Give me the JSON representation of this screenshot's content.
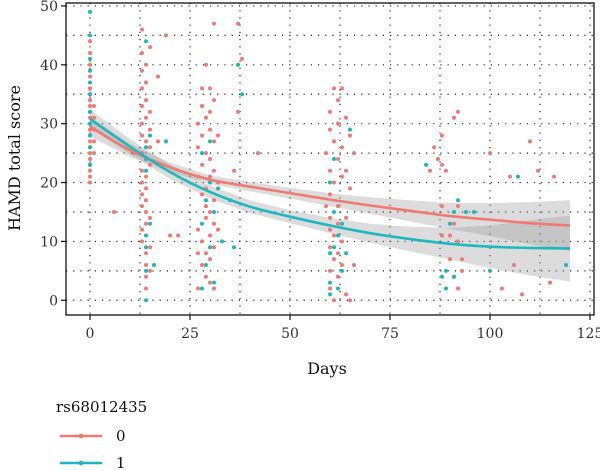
{
  "chart_data": {
    "type": "scatter",
    "title": "",
    "xlabel": "Days",
    "ylabel": "HAMD total score",
    "xlim": [
      -6,
      126
    ],
    "ylim": [
      -2.5,
      50.5
    ],
    "xticks": [
      0,
      25,
      50,
      75,
      100,
      125
    ],
    "yticks": [
      0,
      10,
      20,
      30,
      40,
      50
    ],
    "grid": "dotted",
    "legend": {
      "title": "rs68012435",
      "placement": "bottom-left",
      "entries": [
        {
          "label": "0",
          "color": "#F07A72"
        },
        {
          "label": "1",
          "color": "#1CB8BE"
        }
      ]
    },
    "series": [
      {
        "name": "0",
        "color": "#F07A72",
        "points": [
          [
            0,
            20
          ],
          [
            0,
            21
          ],
          [
            0,
            22
          ],
          [
            0,
            23
          ],
          [
            0,
            24
          ],
          [
            0,
            25
          ],
          [
            0,
            26
          ],
          [
            0,
            27
          ],
          [
            0,
            28
          ],
          [
            0,
            29
          ],
          [
            0,
            30
          ],
          [
            0,
            31
          ],
          [
            0,
            32
          ],
          [
            0,
            33
          ],
          [
            0,
            34
          ],
          [
            0,
            35
          ],
          [
            0,
            36
          ],
          [
            0,
            38
          ],
          [
            0,
            40
          ],
          [
            0,
            42
          ],
          [
            0,
            44
          ],
          [
            1,
            25
          ],
          [
            1,
            27
          ],
          [
            1,
            29
          ],
          [
            1,
            31
          ],
          [
            1,
            33
          ],
          [
            6,
            15
          ],
          [
            11,
            25
          ],
          [
            13,
            10
          ],
          [
            13,
            12
          ],
          [
            13,
            16
          ],
          [
            13,
            18
          ],
          [
            13,
            20
          ],
          [
            13,
            22
          ],
          [
            13,
            25
          ],
          [
            13,
            28
          ],
          [
            13,
            30
          ],
          [
            13,
            33
          ],
          [
            13,
            36
          ],
          [
            13,
            39
          ],
          [
            13,
            42
          ],
          [
            13,
            46
          ],
          [
            14,
            2
          ],
          [
            14,
            4
          ],
          [
            14,
            6
          ],
          [
            14,
            8
          ],
          [
            14,
            13
          ],
          [
            14,
            15
          ],
          [
            14,
            17
          ],
          [
            14,
            19
          ],
          [
            14,
            21
          ],
          [
            14,
            24
          ],
          [
            14,
            27
          ],
          [
            14,
            31
          ],
          [
            14,
            34
          ],
          [
            14,
            37
          ],
          [
            14,
            40
          ],
          [
            15,
            5
          ],
          [
            15,
            9
          ],
          [
            15,
            14
          ],
          [
            15,
            23
          ],
          [
            15,
            26
          ],
          [
            15,
            29
          ],
          [
            15,
            32
          ],
          [
            15,
            43
          ],
          [
            17,
            27
          ],
          [
            17,
            38
          ],
          [
            19,
            45
          ],
          [
            20,
            11
          ],
          [
            22,
            11
          ],
          [
            27,
            2
          ],
          [
            27,
            8
          ],
          [
            27,
            12
          ],
          [
            27,
            21
          ],
          [
            27,
            26
          ],
          [
            27,
            30
          ],
          [
            28,
            6
          ],
          [
            28,
            10
          ],
          [
            28,
            18
          ],
          [
            28,
            23
          ],
          [
            28,
            28
          ],
          [
            28,
            33
          ],
          [
            28,
            36
          ],
          [
            29,
            4
          ],
          [
            29,
            8
          ],
          [
            29,
            14
          ],
          [
            29,
            16
          ],
          [
            29,
            19
          ],
          [
            29,
            25
          ],
          [
            29,
            31
          ],
          [
            29,
            40
          ],
          [
            30,
            3
          ],
          [
            30,
            7
          ],
          [
            30,
            11
          ],
          [
            30,
            15
          ],
          [
            30,
            21
          ],
          [
            30,
            24
          ],
          [
            30,
            29
          ],
          [
            30,
            32
          ],
          [
            30,
            36
          ],
          [
            31,
            2
          ],
          [
            31,
            9
          ],
          [
            31,
            13
          ],
          [
            31,
            17
          ],
          [
            31,
            22
          ],
          [
            31,
            27
          ],
          [
            31,
            34
          ],
          [
            31,
            47
          ],
          [
            32,
            12
          ],
          [
            32,
            20
          ],
          [
            32,
            28
          ],
          [
            36,
            22
          ],
          [
            37,
            32
          ],
          [
            37,
            47
          ],
          [
            38,
            41
          ],
          [
            42,
            25
          ],
          [
            59,
            16
          ],
          [
            59,
            25
          ],
          [
            60,
            2
          ],
          [
            60,
            5
          ],
          [
            60,
            9
          ],
          [
            60,
            12
          ],
          [
            60,
            14
          ],
          [
            60,
            18
          ],
          [
            60,
            22
          ],
          [
            60,
            29
          ],
          [
            60,
            32
          ],
          [
            61,
            0
          ],
          [
            61,
            7
          ],
          [
            61,
            11
          ],
          [
            61,
            20
          ],
          [
            61,
            27
          ],
          [
            61,
            36
          ],
          [
            62,
            4
          ],
          [
            62,
            8
          ],
          [
            62,
            13
          ],
          [
            62,
            16
          ],
          [
            62,
            24
          ],
          [
            62,
            30
          ],
          [
            62,
            34
          ],
          [
            63,
            6
          ],
          [
            63,
            10
          ],
          [
            63,
            21
          ],
          [
            63,
            26
          ],
          [
            63,
            36
          ],
          [
            64,
            1
          ],
          [
            64,
            14
          ],
          [
            64,
            22
          ],
          [
            64,
            31
          ],
          [
            65,
            0
          ],
          [
            65,
            19
          ],
          [
            65,
            28
          ],
          [
            66,
            6
          ],
          [
            66,
            25
          ],
          [
            85,
            22
          ],
          [
            86,
            26
          ],
          [
            87,
            24
          ],
          [
            88,
            11
          ],
          [
            88,
            16
          ],
          [
            88,
            23
          ],
          [
            88,
            28
          ],
          [
            89,
            22
          ],
          [
            90,
            7
          ],
          [
            90,
            11
          ],
          [
            91,
            4
          ],
          [
            91,
            13
          ],
          [
            91,
            31
          ],
          [
            92,
            2
          ],
          [
            92,
            10
          ],
          [
            92,
            16
          ],
          [
            92,
            32
          ],
          [
            93,
            5
          ],
          [
            93,
            7
          ],
          [
            100,
            25
          ],
          [
            103,
            2
          ],
          [
            105,
            21
          ],
          [
            106,
            6
          ],
          [
            108,
            1
          ],
          [
            110,
            27
          ],
          [
            112,
            22
          ],
          [
            115,
            3
          ],
          [
            116,
            21
          ]
        ]
      },
      {
        "name": "1",
        "color": "#1CB8BE",
        "points": [
          [
            0,
            23
          ],
          [
            0,
            26
          ],
          [
            0,
            28
          ],
          [
            0,
            30
          ],
          [
            0,
            32
          ],
          [
            0,
            35
          ],
          [
            0,
            37
          ],
          [
            0,
            39
          ],
          [
            0,
            41
          ],
          [
            0,
            45
          ],
          [
            0,
            49
          ],
          [
            14,
            0
          ],
          [
            14,
            5
          ],
          [
            14,
            9
          ],
          [
            14,
            11
          ],
          [
            14,
            22
          ],
          [
            14,
            24
          ],
          [
            14,
            26
          ],
          [
            14,
            44
          ],
          [
            15,
            13
          ],
          [
            15,
            28
          ],
          [
            16,
            6
          ],
          [
            19,
            27
          ],
          [
            28,
            2
          ],
          [
            28,
            13
          ],
          [
            28,
            25
          ],
          [
            29,
            6
          ],
          [
            29,
            17
          ],
          [
            30,
            9
          ],
          [
            30,
            20
          ],
          [
            30,
            27
          ],
          [
            31,
            3
          ],
          [
            31,
            15
          ],
          [
            32,
            19
          ],
          [
            33,
            10
          ],
          [
            35,
            17
          ],
          [
            36,
            9
          ],
          [
            37,
            40
          ],
          [
            38,
            35
          ],
          [
            60,
            1
          ],
          [
            60,
            3
          ],
          [
            60,
            8
          ],
          [
            60,
            20
          ],
          [
            61,
            9
          ],
          [
            61,
            15
          ],
          [
            61,
            24
          ],
          [
            62,
            2
          ],
          [
            62,
            11
          ],
          [
            63,
            5
          ],
          [
            63,
            13
          ],
          [
            64,
            8
          ],
          [
            65,
            29
          ],
          [
            84,
            23
          ],
          [
            88,
            4
          ],
          [
            89,
            2
          ],
          [
            89,
            5
          ],
          [
            90,
            13
          ],
          [
            91,
            4
          ],
          [
            91,
            15
          ],
          [
            92,
            17
          ],
          [
            94,
            15
          ],
          [
            96,
            15
          ],
          [
            100,
            5
          ],
          [
            107,
            21
          ],
          [
            119,
            6
          ]
        ]
      }
    ],
    "fits": [
      {
        "name": "0",
        "x": [
          0,
          10,
          20,
          30,
          40,
          50,
          60,
          70,
          80,
          90,
          100,
          110,
          120
        ],
        "y": [
          29.5,
          25.5,
          22.6,
          20.5,
          19.3,
          18.2,
          17.1,
          16.1,
          15.2,
          14.3,
          13.7,
          13.1,
          12.7
        ],
        "ci_lower": [
          27.8,
          24.4,
          21.8,
          19.8,
          18.5,
          17.3,
          16.0,
          14.7,
          13.4,
          12.1,
          10.9,
          9.5,
          8.4
        ],
        "ci_upper": [
          31.2,
          26.6,
          23.4,
          21.2,
          20.1,
          19.1,
          18.2,
          17.5,
          17.0,
          16.5,
          16.5,
          16.7,
          17.0
        ]
      },
      {
        "name": "1",
        "x": [
          0,
          10,
          20,
          30,
          40,
          50,
          60,
          70,
          80,
          90,
          100,
          110,
          120
        ],
        "y": [
          30.8,
          26.1,
          21.8,
          18.4,
          15.9,
          14.2,
          12.7,
          11.4,
          10.4,
          9.6,
          9.1,
          8.9,
          8.8
        ],
        "ci_lower": [
          29.2,
          24.8,
          20.6,
          17.3,
          14.8,
          13.1,
          11.4,
          9.8,
          8.3,
          6.9,
          5.5,
          4.2,
          3.2
        ],
        "ci_upper": [
          32.4,
          27.4,
          23.0,
          19.5,
          17.0,
          15.3,
          14.0,
          13.0,
          12.5,
          12.3,
          12.7,
          13.6,
          14.4
        ]
      }
    ]
  }
}
